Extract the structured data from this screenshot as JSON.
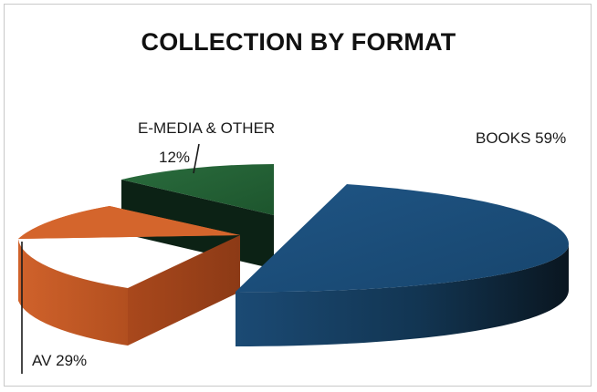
{
  "chart_data": {
    "type": "pie",
    "style": "3d-exploded",
    "title": "COLLECTION BY FORMAT",
    "categories": [
      "BOOKS",
      "AV",
      "E-MEDIA & OTHER"
    ],
    "values": [
      59,
      29,
      12
    ],
    "unit": "%",
    "data_labels": [
      "BOOKS 59%",
      "AV 29%",
      "E-MEDIA & OTHER"
    ],
    "data_labels_second_line": [
      "",
      "",
      "12%"
    ],
    "colors": [
      "#1c4e7a",
      "#d0622b",
      "#1f5e34"
    ],
    "legend": "none",
    "grid": false
  }
}
